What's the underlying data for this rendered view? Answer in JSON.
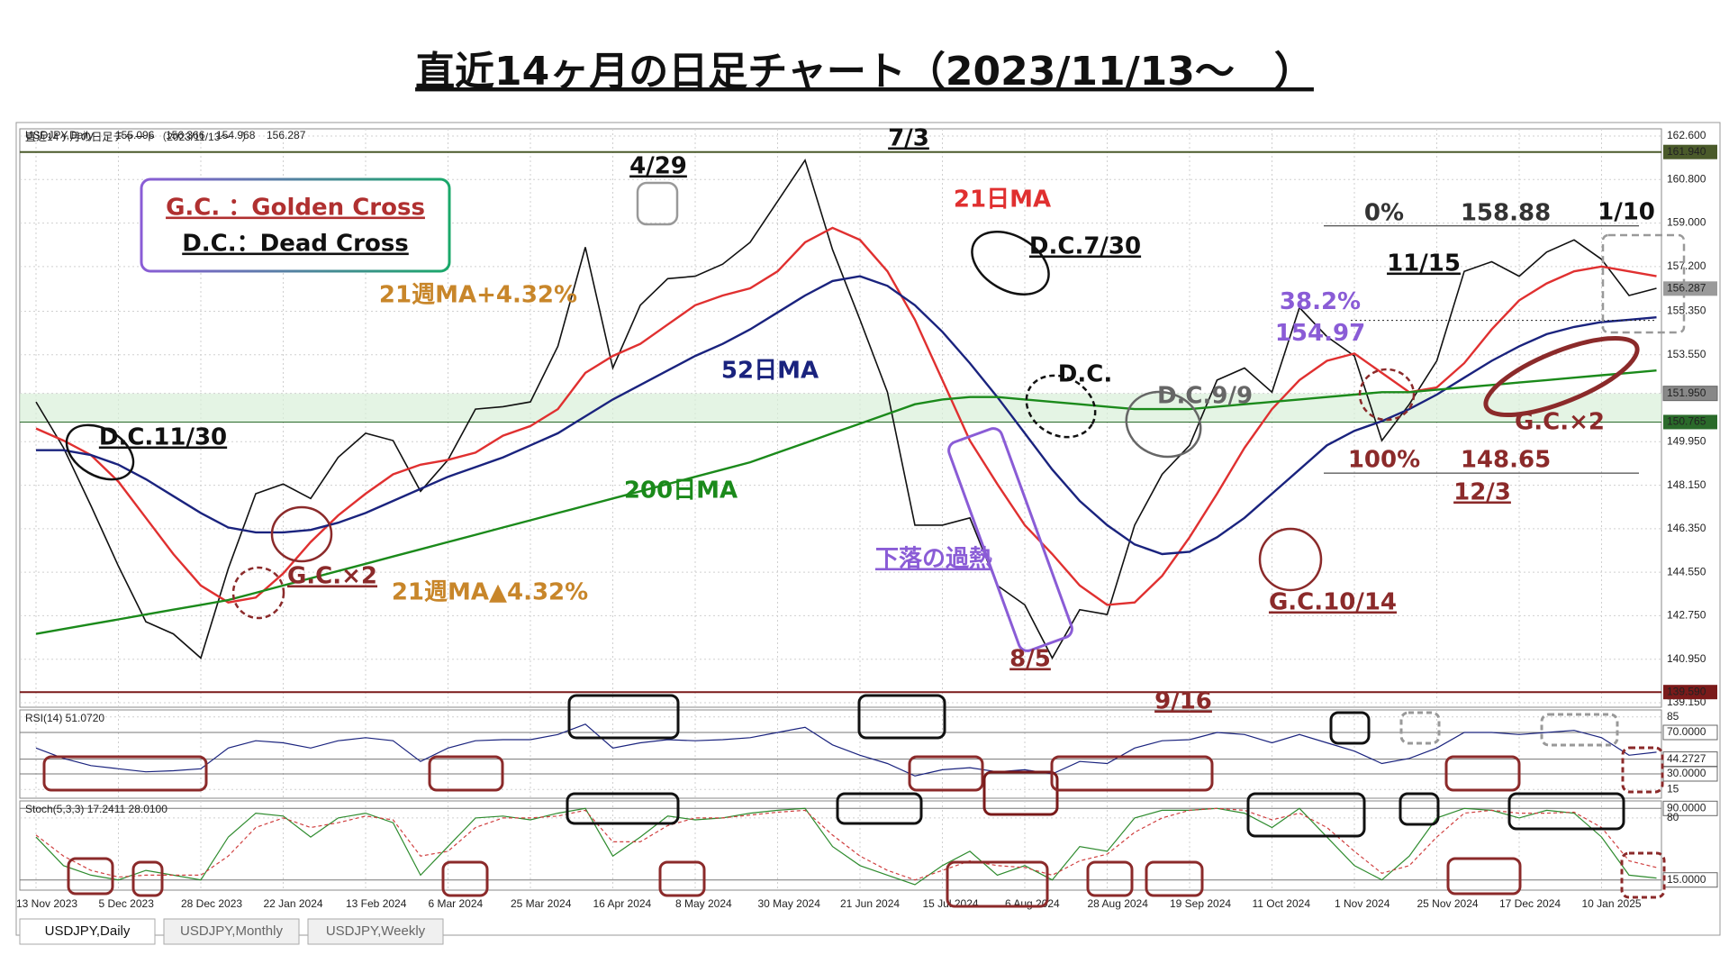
{
  "chart_data": [
    {
      "type": "line",
      "title": "直近14ヶ月の日足チャート（2023/11/13〜　）",
      "header_values": [
        155.096,
        156.366,
        154.968,
        156.287
      ],
      "categories": [
        "13 Nov 2023",
        null,
        null,
        "5 Dec 2023",
        null,
        null,
        "28 Dec 2023",
        null,
        null,
        "22 Jan 2024",
        null,
        null,
        "13 Feb 2024",
        null,
        null,
        "6 Mar 2024",
        null,
        null,
        "25 Mar 2024",
        null,
        null,
        "16 Apr 2024",
        null,
        null,
        "8 May 2024",
        null,
        null,
        "30 May 2024",
        null,
        null,
        "21 Jun 2024",
        null,
        null,
        "15 Jul 2024",
        null,
        null,
        "6 Aug 2024",
        null,
        null,
        "28 Aug 2024",
        null,
        null,
        "19 Sep 2024",
        null,
        null,
        "11 Oct 2024",
        null,
        null,
        "1 Nov 2024",
        null,
        null,
        "25 Nov 2024",
        null,
        null,
        "17 Dec 2024",
        null,
        null,
        "10 Jan 2025",
        null,
        null
      ],
      "series": [
        {
          "name": "USDJPY,Daily",
          "color": "#111111",
          "values": [
            151.6,
            149.7,
            147.3,
            144.8,
            142.5,
            142.0,
            141.0,
            144.7,
            147.8,
            148.2,
            147.6,
            149.3,
            150.3,
            150.0,
            147.9,
            149.2,
            151.3,
            151.4,
            151.6,
            153.9,
            158.0,
            153.0,
            155.6,
            156.7,
            156.8,
            157.3,
            158.2,
            159.9,
            161.6,
            157.9,
            155.0,
            152.0,
            146.5,
            146.5,
            146.8,
            144.0,
            143.2,
            141.0,
            143.0,
            142.8,
            146.5,
            148.6,
            149.8,
            152.5,
            153.0,
            152.0,
            155.5,
            154.3,
            153.5,
            150.0,
            151.5,
            153.3,
            157.0,
            157.4,
            156.8,
            157.8,
            158.3,
            157.5,
            156.0,
            156.3
          ]
        },
        {
          "name": "21日MA",
          "color": "#e03030",
          "values": [
            150.5,
            150.0,
            149.4,
            148.3,
            146.8,
            145.3,
            144.0,
            143.3,
            143.5,
            144.5,
            145.8,
            146.9,
            147.8,
            148.6,
            149.0,
            149.2,
            149.5,
            150.2,
            150.6,
            151.3,
            152.8,
            153.5,
            154.0,
            154.8,
            155.6,
            156.0,
            156.3,
            157.0,
            158.2,
            158.8,
            158.3,
            157.0,
            155.0,
            152.5,
            150.0,
            148.2,
            146.5,
            145.3,
            144.0,
            143.2,
            143.3,
            144.4,
            146.0,
            147.8,
            149.7,
            151.3,
            152.5,
            153.3,
            153.6,
            152.8,
            152.0,
            152.2,
            153.2,
            154.6,
            155.8,
            156.5,
            157.0,
            157.2,
            157.0,
            156.8
          ]
        },
        {
          "name": "52日MA",
          "color": "#1a237e",
          "values": [
            149.6,
            149.6,
            149.4,
            149.0,
            148.4,
            147.7,
            147.0,
            146.4,
            146.2,
            146.2,
            146.3,
            146.6,
            147.0,
            147.5,
            148.0,
            148.5,
            148.9,
            149.3,
            149.8,
            150.3,
            151.0,
            151.7,
            152.3,
            152.9,
            153.5,
            154.0,
            154.6,
            155.3,
            156.0,
            156.6,
            156.8,
            156.4,
            155.6,
            154.5,
            153.2,
            151.8,
            150.3,
            148.8,
            147.5,
            146.5,
            145.7,
            145.3,
            145.4,
            146.0,
            146.8,
            147.8,
            148.8,
            149.8,
            150.4,
            150.8,
            151.3,
            151.9,
            152.6,
            153.3,
            153.9,
            154.4,
            154.7,
            154.9,
            155.0,
            155.1
          ]
        },
        {
          "name": "200日MA",
          "color": "#1b8a1b",
          "values": [
            142.0,
            142.2,
            142.4,
            142.6,
            142.8,
            143.0,
            143.2,
            143.4,
            143.7,
            144.0,
            144.3,
            144.6,
            144.9,
            145.2,
            145.5,
            145.8,
            146.1,
            146.4,
            146.7,
            147.0,
            147.3,
            147.6,
            147.9,
            148.2,
            148.5,
            148.8,
            149.1,
            149.5,
            149.9,
            150.3,
            150.7,
            151.1,
            151.5,
            151.7,
            151.8,
            151.8,
            151.7,
            151.6,
            151.5,
            151.4,
            151.3,
            151.3,
            151.3,
            151.4,
            151.5,
            151.6,
            151.7,
            151.8,
            151.9,
            152.0,
            152.0,
            152.1,
            152.2,
            152.3,
            152.4,
            152.5,
            152.6,
            152.7,
            152.8,
            152.9
          ]
        }
      ],
      "ylim": [
        139.15,
        162.6
      ],
      "yticks": [
        {
          "value": 162.6,
          "label": "162.600"
        },
        {
          "value": 160.8,
          "label": "160.800"
        },
        {
          "value": 159.0,
          "label": "159.000"
        },
        {
          "value": 157.2,
          "label": "157.200"
        },
        {
          "value": 155.35,
          "label": "155.350"
        },
        {
          "value": 153.55,
          "label": "153.550"
        },
        {
          "value": 151.95,
          "label": "151.950"
        },
        {
          "value": 149.95,
          "label": "149.950"
        },
        {
          "value": 148.15,
          "label": "148.150"
        },
        {
          "value": 146.35,
          "label": "146.350"
        },
        {
          "value": 144.55,
          "label": "144.550"
        },
        {
          "value": 142.75,
          "label": "142.750"
        },
        {
          "value": 140.95,
          "label": "140.950"
        },
        {
          "value": 139.15,
          "label": "139.150"
        }
      ],
      "price_labels": [
        {
          "value": 161.94,
          "label": "161.940"
        },
        {
          "value": 156.287,
          "label": "156.287"
        },
        {
          "value": 150.765,
          "label": "150.765"
        },
        {
          "value": 139.59,
          "label": "139.590"
        }
      ],
      "fib": [
        {
          "value": 158.88,
          "label": "158.88",
          "pct": "0%"
        },
        {
          "value": 154.97,
          "label": "154.97",
          "pct": "38.2%"
        },
        {
          "value": 148.65,
          "label": "148.65",
          "pct": "100%"
        }
      ],
      "grid": true,
      "annotations": [
        {
          "text": "G.C. ：Golden Cross",
          "color": "#b03030"
        },
        {
          "text": "D.C.：Dead Cross",
          "color": "#111111"
        },
        {
          "text": "4/29",
          "color": "#111111"
        },
        {
          "text": "7/3",
          "color": "#111111"
        },
        {
          "text": "D.C.7/30",
          "color": "#111111"
        },
        {
          "text": "D.C.",
          "color": "#111111"
        },
        {
          "text": "D.C.9/9",
          "color": "#666666"
        },
        {
          "text": "D.C.11/30",
          "color": "#111111"
        },
        {
          "text": "G.C.×2",
          "color": "#8b2a2a"
        },
        {
          "text": "21週MA+4.32%",
          "color": "#c8862a"
        },
        {
          "text": "21週MA▲4.32%",
          "color": "#c8862a"
        },
        {
          "text": "下落の過熱",
          "color": "#8a5cd6"
        },
        {
          "text": "8/5",
          "color": "#8b2a2a"
        },
        {
          "text": "9/16",
          "color": "#8b2a2a"
        },
        {
          "text": "G.C.10/14",
          "color": "#8b2a2a"
        },
        {
          "text": "11/15",
          "color": "#111111"
        },
        {
          "text": "1/10",
          "color": "#111111"
        },
        {
          "text": "G.C.×2",
          "color": "#8b2a2a"
        },
        {
          "text": "12/3",
          "color": "#8b2a2a"
        }
      ],
      "tabs": [
        "USDJPY,Daily",
        "USDJPY,Monthly",
        "USDJPY,Weekly"
      ]
    },
    {
      "type": "line",
      "title": "RSI(14) 51.0720",
      "series": [
        {
          "color": "#1a237e",
          "values": [
            55,
            45,
            38,
            35,
            32,
            33,
            35,
            55,
            62,
            60,
            55,
            62,
            65,
            62,
            42,
            55,
            62,
            63,
            63,
            68,
            78,
            55,
            60,
            63,
            62,
            63,
            65,
            70,
            75,
            58,
            48,
            40,
            28,
            34,
            36,
            32,
            34,
            30,
            42,
            40,
            55,
            62,
            63,
            70,
            68,
            60,
            68,
            60,
            52,
            40,
            45,
            55,
            70,
            70,
            68,
            70,
            72,
            65,
            48,
            51
          ]
        }
      ],
      "ylim": [
        10,
        90
      ],
      "yticks": [
        85,
        {
          "value": 70,
          "label": "70.0000"
        },
        {
          "value": 44.2727,
          "label": "44.2727"
        },
        {
          "value": 30,
          "label": "30.0000"
        },
        15
      ]
    },
    {
      "type": "line",
      "title": "Stoch(5,3,3) 17.2411 28.0100",
      "series": [
        {
          "color": "#2e8b2e",
          "values": [
            60,
            30,
            20,
            15,
            25,
            20,
            15,
            60,
            85,
            82,
            60,
            80,
            85,
            75,
            20,
            50,
            80,
            82,
            78,
            85,
            90,
            40,
            60,
            82,
            78,
            80,
            85,
            88,
            90,
            50,
            30,
            20,
            10,
            30,
            45,
            20,
            30,
            15,
            50,
            45,
            80,
            88,
            88,
            90,
            85,
            70,
            90,
            60,
            30,
            15,
            40,
            80,
            90,
            88,
            80,
            88,
            85,
            60,
            20,
            17
          ]
        },
        {
          "color": "#d04040",
          "values": [
            62,
            40,
            25,
            18,
            20,
            20,
            20,
            40,
            70,
            80,
            70,
            75,
            82,
            78,
            40,
            45,
            70,
            80,
            80,
            82,
            88,
            55,
            55,
            72,
            80,
            80,
            83,
            86,
            88,
            62,
            40,
            25,
            15,
            25,
            35,
            30,
            28,
            20,
            35,
            42,
            65,
            80,
            88,
            90,
            88,
            78,
            85,
            70,
            45,
            22,
            30,
            60,
            85,
            88,
            85,
            85,
            86,
            70,
            35,
            28
          ]
        }
      ],
      "ylim": [
        10,
        95
      ],
      "yticks": [
        {
          "value": 90,
          "label": "90.0000"
        },
        80,
        {
          "value": 15,
          "label": "15.0000"
        }
      ]
    }
  ]
}
